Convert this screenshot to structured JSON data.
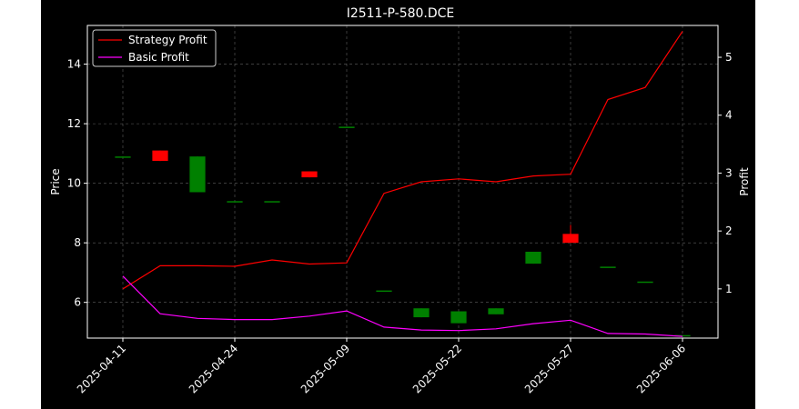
{
  "chart_data": {
    "type": "candlestick-with-lines",
    "title": "I2511-P-580.DCE",
    "ylabel_left": "Price",
    "ylabel_right": "Profit",
    "xlabel": "",
    "ylim_left": [
      4.8,
      15.3
    ],
    "ylim_right": [
      0.15,
      5.55
    ],
    "yticks_left": [
      6,
      8,
      10,
      12,
      14
    ],
    "yticks_right": [
      1,
      2,
      3,
      4,
      5
    ],
    "x_tick_labels": [
      "2025-04-11",
      "2025-04-24",
      "2025-05-09",
      "2025-05-22",
      "2025-05-27",
      "2025-06-06"
    ],
    "x_tick_index": [
      0,
      3,
      6,
      9,
      12,
      15
    ],
    "grid": true,
    "legend_position": "upper left",
    "colors": {
      "background": "#000000",
      "up": "#008000",
      "down": "#ff0000",
      "strategy": "#ff0000",
      "basic": "#ff00ff"
    },
    "candles": [
      {
        "o": 10.9,
        "h": 10.9,
        "l": 10.9,
        "c": 10.9
      },
      {
        "o": 11.1,
        "h": 11.1,
        "l": 10.75,
        "c": 10.75
      },
      {
        "o": 9.7,
        "h": 10.9,
        "l": 9.7,
        "c": 10.9
      },
      {
        "o": 9.4,
        "h": 9.4,
        "l": 9.4,
        "c": 9.4
      },
      {
        "o": 9.4,
        "h": 9.4,
        "l": 9.4,
        "c": 9.4
      },
      {
        "o": 10.4,
        "h": 10.4,
        "l": 10.2,
        "c": 10.2
      },
      {
        "o": 11.9,
        "h": 11.9,
        "l": 11.9,
        "c": 11.9
      },
      {
        "o": 6.4,
        "h": 6.4,
        "l": 6.4,
        "c": 6.4
      },
      {
        "o": 5.5,
        "h": 5.8,
        "l": 5.5,
        "c": 5.8
      },
      {
        "o": 5.3,
        "h": 5.7,
        "l": 5.3,
        "c": 5.7
      },
      {
        "o": 5.6,
        "h": 5.8,
        "l": 5.6,
        "c": 5.8
      },
      {
        "o": 7.3,
        "h": 7.7,
        "l": 7.3,
        "c": 7.7
      },
      {
        "o": 8.3,
        "h": 8.6,
        "l": 8.0,
        "c": 8.0
      },
      {
        "o": 7.2,
        "h": 7.2,
        "l": 7.2,
        "c": 7.2
      },
      {
        "o": 6.7,
        "h": 6.7,
        "l": 6.7,
        "c": 6.7
      },
      {
        "o": 4.9,
        "h": 4.9,
        "l": 4.9,
        "c": 4.9
      }
    ],
    "series": [
      {
        "name": "Strategy Profit",
        "axis": "right",
        "values": [
          1.0,
          1.4,
          1.4,
          1.39,
          1.5,
          1.43,
          1.45,
          2.65,
          2.85,
          2.9,
          2.85,
          2.95,
          2.98,
          4.27,
          4.48,
          5.45
        ]
      },
      {
        "name": "Basic Profit",
        "axis": "right",
        "values": [
          1.22,
          0.57,
          0.49,
          0.47,
          0.47,
          0.53,
          0.62,
          0.34,
          0.29,
          0.28,
          0.31,
          0.4,
          0.46,
          0.23,
          0.22,
          0.18
        ]
      }
    ]
  }
}
